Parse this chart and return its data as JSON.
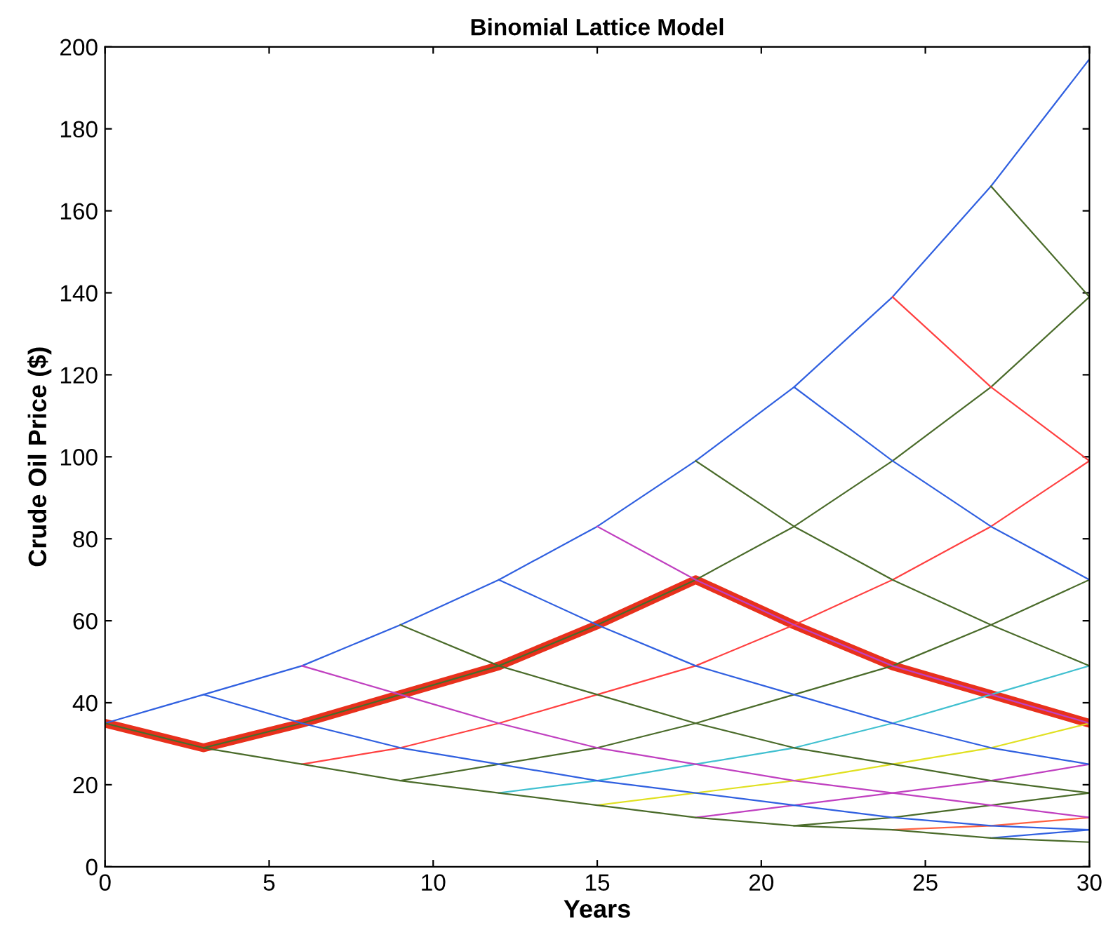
{
  "chart_data": {
    "type": "line",
    "title": "Binomial Lattice Model",
    "xlabel": "Years",
    "ylabel": "Crude Oil Price ($)",
    "xlim": [
      0,
      30
    ],
    "ylim": [
      0,
      200
    ],
    "xticks": [
      0,
      5,
      10,
      15,
      20,
      25,
      30
    ],
    "yticks": [
      0,
      20,
      40,
      60,
      80,
      100,
      120,
      140,
      160,
      180,
      200
    ],
    "grid": false,
    "marker": "none",
    "line_style": "solid",
    "series": [
      {
        "color": "#3060e0",
        "x": [
          0,
          3,
          6,
          9,
          12,
          15,
          18,
          21,
          24,
          27,
          30
        ],
        "values": [
          35,
          42,
          49,
          59,
          70,
          83,
          99,
          117,
          139,
          166,
          197
        ]
      },
      {
        "color": "#4a6b2a",
        "x": [
          3,
          6,
          9,
          12,
          15,
          18,
          21,
          24,
          27,
          30
        ],
        "values": [
          29,
          35,
          42,
          49,
          59,
          70,
          83,
          99,
          117,
          139
        ]
      },
      {
        "color": "#ff4040",
        "x": [
          6,
          9,
          12,
          15,
          18,
          21,
          24,
          27,
          30
        ],
        "values": [
          25,
          29,
          35,
          42,
          49,
          59,
          70,
          83,
          99
        ]
      },
      {
        "color": "#4a6b2a",
        "x": [
          9,
          12,
          15,
          18,
          21,
          24,
          27,
          30
        ],
        "values": [
          21,
          25,
          29,
          35,
          42,
          49,
          59,
          70
        ]
      },
      {
        "color": "#40c0d0",
        "x": [
          12,
          15,
          18,
          21,
          24,
          27,
          30
        ],
        "values": [
          18,
          21,
          25,
          29,
          35,
          42,
          49
        ]
      },
      {
        "color": "#e0e020",
        "x": [
          15,
          18,
          21,
          24,
          27,
          30
        ],
        "values": [
          15,
          18,
          21,
          25,
          29,
          35
        ]
      },
      {
        "color": "#c040c0",
        "x": [
          18,
          21,
          24,
          27,
          30
        ],
        "values": [
          12,
          15,
          18,
          21,
          25
        ]
      },
      {
        "color": "#4a6b2a",
        "x": [
          21,
          24,
          27,
          30
        ],
        "values": [
          10,
          12,
          15,
          18
        ]
      },
      {
        "color": "#ff6040",
        "x": [
          24,
          27,
          30
        ],
        "values": [
          9,
          10,
          12
        ]
      },
      {
        "color": "#3060e0",
        "x": [
          27,
          30
        ],
        "values": [
          7,
          9
        ]
      },
      {
        "color": "#4a6b2a",
        "x": [
          0,
          3,
          6,
          9,
          12,
          15,
          18,
          21,
          24,
          27,
          30
        ],
        "values": [
          35,
          29,
          25,
          21,
          18,
          15,
          12,
          10,
          9,
          7,
          6
        ]
      },
      {
        "color": "#3060e0",
        "x": [
          3,
          6,
          9,
          12,
          15,
          18,
          21,
          24,
          27,
          30
        ],
        "values": [
          42,
          35,
          29,
          25,
          21,
          18,
          15,
          12,
          10,
          9
        ]
      },
      {
        "color": "#c040c0",
        "x": [
          6,
          9,
          12,
          15,
          18,
          21,
          24,
          27,
          30
        ],
        "values": [
          49,
          42,
          35,
          29,
          25,
          21,
          18,
          15,
          12
        ]
      },
      {
        "color": "#4a6b2a",
        "x": [
          9,
          12,
          15,
          18,
          21,
          24,
          27,
          30
        ],
        "values": [
          59,
          49,
          42,
          35,
          29,
          25,
          21,
          18
        ]
      },
      {
        "color": "#3060e0",
        "x": [
          12,
          15,
          18,
          21,
          24,
          27,
          30
        ],
        "values": [
          70,
          59,
          49,
          42,
          35,
          29,
          25
        ]
      },
      {
        "color": "#c040c0",
        "x": [
          15,
          18,
          21,
          24,
          27,
          30
        ],
        "values": [
          83,
          70,
          59,
          49,
          42,
          35
        ]
      },
      {
        "color": "#4a6b2a",
        "x": [
          18,
          21,
          24,
          27,
          30
        ],
        "values": [
          99,
          83,
          70,
          59,
          49
        ]
      },
      {
        "color": "#3060e0",
        "x": [
          21,
          24,
          27,
          30
        ],
        "values": [
          117,
          99,
          83,
          70
        ]
      },
      {
        "color": "#ff4040",
        "x": [
          24,
          27,
          30
        ],
        "values": [
          139,
          117,
          99
        ]
      },
      {
        "color": "#4a6b2a",
        "x": [
          27,
          30
        ],
        "values": [
          166,
          139
        ]
      },
      {
        "color": "#e8301c",
        "x": [
          0,
          3,
          6,
          9,
          12,
          15,
          18,
          21,
          24,
          27,
          30
        ],
        "values": [
          35,
          29,
          35,
          42,
          49,
          59,
          70,
          59,
          49,
          42,
          35
        ]
      }
    ]
  }
}
